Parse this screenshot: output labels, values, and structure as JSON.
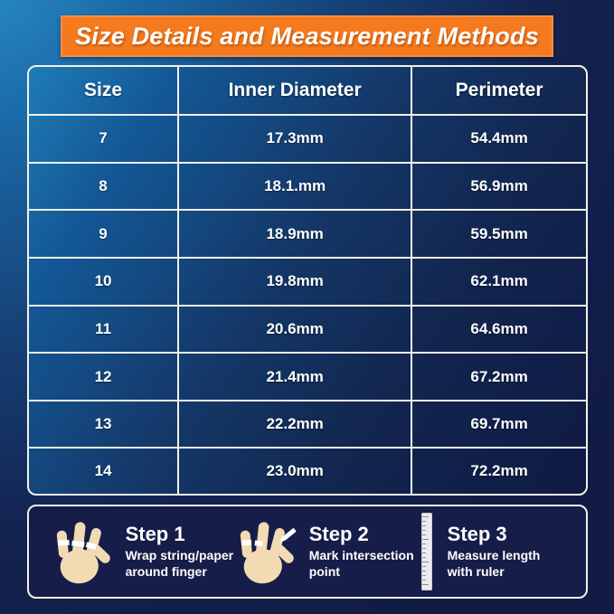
{
  "title": "Size Details and Measurement Methods",
  "chart_data": {
    "type": "table",
    "title": "Size Details and Measurement Methods",
    "columns": [
      "Size",
      "Inner Diameter",
      "Perimeter"
    ],
    "rows": [
      [
        "7",
        "17.3mm",
        "54.4mm"
      ],
      [
        "8",
        "18.1.mm",
        "56.9mm"
      ],
      [
        "9",
        "18.9mm",
        "59.5mm"
      ],
      [
        "10",
        "19.8mm",
        "62.1mm"
      ],
      [
        "11",
        "20.6mm",
        "64.6mm"
      ],
      [
        "12",
        "21.4mm",
        "67.2mm"
      ],
      [
        "13",
        "22.2mm",
        "69.7mm"
      ],
      [
        "14",
        "23.0mm",
        "72.2mm"
      ]
    ]
  },
  "table": {
    "headers": [
      "Size",
      "Inner Diameter",
      "Perimeter"
    ],
    "rows": [
      {
        "size": "7",
        "inner_diameter": "17.3mm",
        "perimeter": "54.4mm"
      },
      {
        "size": "8",
        "inner_diameter": "18.1.mm",
        "perimeter": "56.9mm"
      },
      {
        "size": "9",
        "inner_diameter": "18.9mm",
        "perimeter": "59.5mm"
      },
      {
        "size": "10",
        "inner_diameter": "19.8mm",
        "perimeter": "62.1mm"
      },
      {
        "size": "11",
        "inner_diameter": "20.6mm",
        "perimeter": "64.6mm"
      },
      {
        "size": "12",
        "inner_diameter": "21.4mm",
        "perimeter": "67.2mm"
      },
      {
        "size": "13",
        "inner_diameter": "22.2mm",
        "perimeter": "69.7mm"
      },
      {
        "size": "14",
        "inner_diameter": "23.0mm",
        "perimeter": "72.2mm"
      }
    ]
  },
  "steps": {
    "items": [
      {
        "title": "Step 1",
        "description": "Wrap string/paper around finger",
        "icon": "hand-with-string-icon"
      },
      {
        "title": "Step 2",
        "description": "Mark intersection point",
        "icon": "hand-with-pencil-icon"
      },
      {
        "title": "Step 3",
        "description": "Measure length with ruler",
        "icon": "ruler-icon"
      }
    ]
  },
  "colors": {
    "banner_orange": "#F5791D",
    "background_light_blue": "#2A8EC7",
    "background_dark_navy": "#111B44",
    "table_border": "#F3F1EA",
    "steps_box_navy": "#161D49",
    "hand_skin": "#F2DAB2",
    "text_white": "#FFFFFF"
  }
}
